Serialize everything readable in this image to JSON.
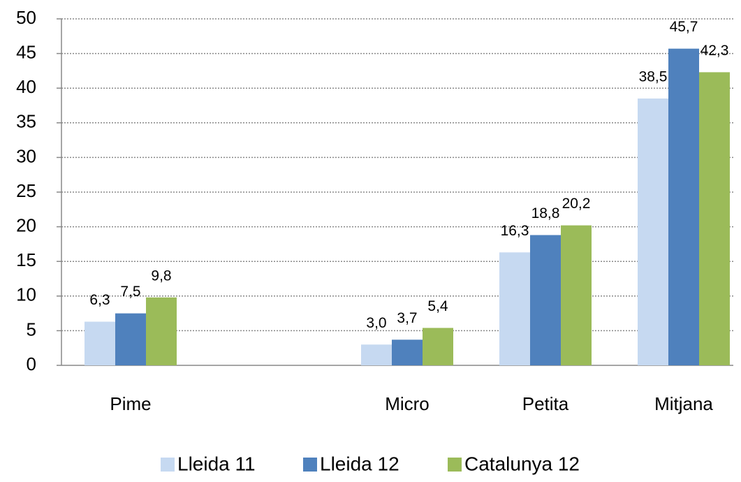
{
  "chart_data": {
    "type": "bar",
    "categories": [
      "Pime",
      null,
      "Micro",
      "Petita",
      "Mitjana"
    ],
    "series": [
      {
        "name": "Lleida 11",
        "color": "#c6d9f1",
        "values": [
          6.3,
          null,
          3.0,
          16.3,
          38.5
        ],
        "value_labels": [
          "6,3",
          null,
          "3,0",
          "16,3",
          "38,5"
        ]
      },
      {
        "name": "Lleida 12",
        "color": "#4f81bd",
        "values": [
          7.5,
          null,
          3.7,
          18.8,
          45.7
        ],
        "value_labels": [
          "7,5",
          null,
          "3,7",
          "18,8",
          "45,7"
        ]
      },
      {
        "name": "Catalunya 12",
        "color": "#9bbb59",
        "values": [
          9.8,
          null,
          5.4,
          20.2,
          42.3
        ],
        "value_labels": [
          "9,8",
          null,
          "5,4",
          "20,2",
          "42,3"
        ]
      }
    ],
    "ylim": [
      0,
      50
    ],
    "yticks": [
      0,
      5,
      10,
      15,
      20,
      25,
      30,
      35,
      40,
      45,
      50
    ],
    "grid": true,
    "legend": "bottom"
  }
}
